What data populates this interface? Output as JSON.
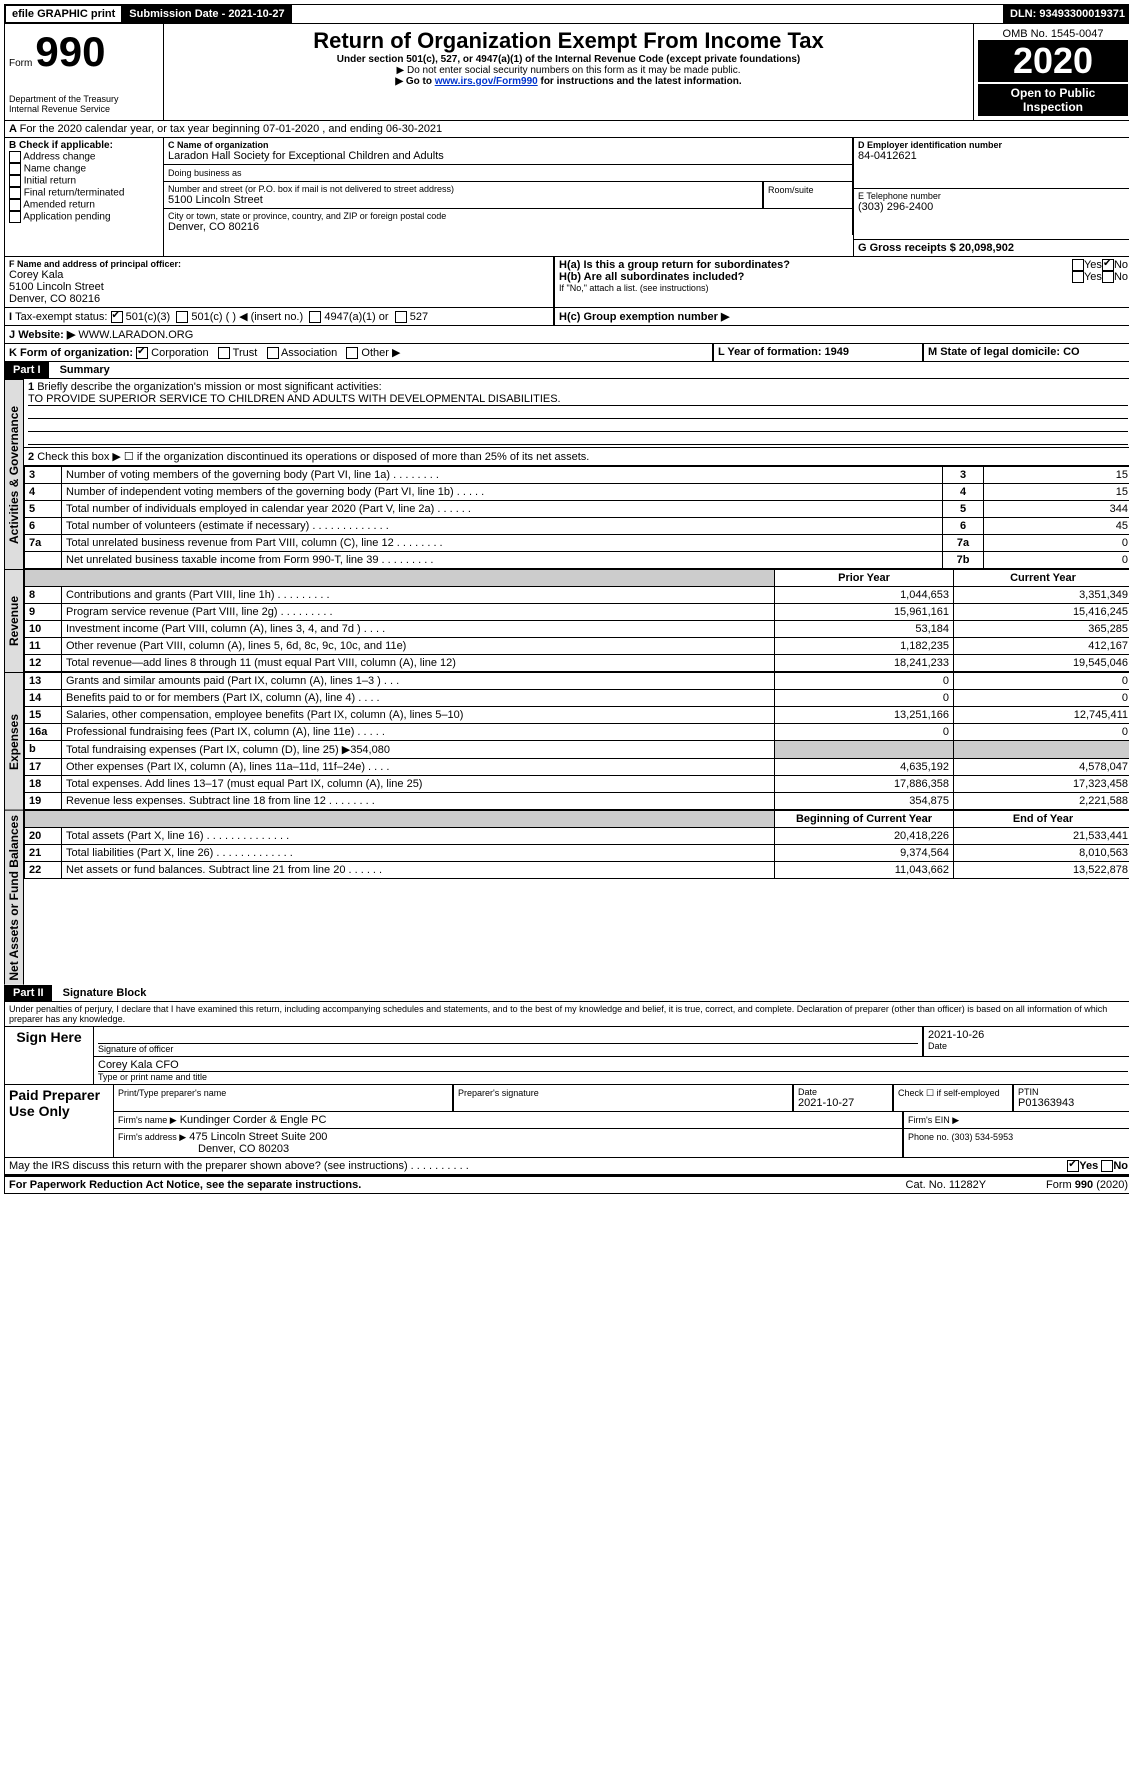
{
  "topbar": {
    "efile": "efile GRAPHIC print",
    "submission_label": "Submission Date - 2021-10-27",
    "dln_label": "DLN: 93493300019371"
  },
  "header": {
    "form_prefix": "Form",
    "form_no": "990",
    "title": "Return of Organization Exempt From Income Tax",
    "sub1": "Under section 501(c), 527, or 4947(a)(1) of the Internal Revenue Code (except private foundations)",
    "sub2": "▶ Do not enter social security numbers on this form as it may be made public.",
    "sub3_pre": "▶ Go to ",
    "sub3_link": "www.irs.gov/Form990",
    "sub3_post": " for instructions and the latest information.",
    "dept": "Department of the Treasury\nInternal Revenue Service",
    "omb": "OMB No. 1545-0047",
    "year": "2020",
    "open": "Open to Public Inspection"
  },
  "A": {
    "line": "For the 2020 calendar year, or tax year beginning 07-01-2020    , and ending 06-30-2021"
  },
  "B": {
    "label": "B Check if applicable:",
    "items": [
      "Address change",
      "Name change",
      "Initial return",
      "Final return/terminated",
      "Amended return",
      "Application pending"
    ]
  },
  "C": {
    "name_label": "C Name of organization",
    "name": "Laradon Hall Society for Exceptional Children and Adults",
    "dba_label": "Doing business as",
    "addr_label": "Number and street (or P.O. box if mail is not delivered to street address)",
    "addr": "5100 Lincoln Street",
    "room_label": "Room/suite",
    "city_label": "City or town, state or province, country, and ZIP or foreign postal code",
    "city": "Denver, CO  80216"
  },
  "D": {
    "label": "D Employer identification number",
    "value": "84-0412621"
  },
  "E": {
    "label": "E Telephone number",
    "value": "(303) 296-2400"
  },
  "G": {
    "label": "G Gross receipts $ 20,098,902"
  },
  "F": {
    "label": "F Name and address of principal officer:",
    "name": "Corey Kala",
    "addr1": "5100 Lincoln Street",
    "addr2": "Denver, CO  80216"
  },
  "H": {
    "a": "H(a)  Is this a group return for subordinates?",
    "b": "H(b)  Are all subordinates included?",
    "b_note": "If \"No,\" attach a list. (see instructions)",
    "c": "H(c)  Group exemption number ▶",
    "yes": "Yes",
    "no": "No"
  },
  "I": {
    "label": "Tax-exempt status:",
    "opt1": "501(c)(3)",
    "opt2": "501(c) (  ) ◀ (insert no.)",
    "opt3": "4947(a)(1) or",
    "opt4": "527"
  },
  "J": {
    "label": "Website: ▶",
    "value": "WWW.LARADON.ORG"
  },
  "K": {
    "label": "K Form of organization:",
    "opts": [
      "Corporation",
      "Trust",
      "Association",
      "Other ▶"
    ]
  },
  "L": {
    "label": "L Year of formation: 1949"
  },
  "M": {
    "label": "M State of legal domicile: CO"
  },
  "part1": {
    "hdr": "Part I",
    "title": "Summary",
    "side_activities": "Activities & Governance",
    "side_revenue": "Revenue",
    "side_expenses": "Expenses",
    "side_netassets": "Net Assets or Fund Balances",
    "l1": "Briefly describe the organization's mission or most significant activities:",
    "l1_text": "TO PROVIDE SUPERIOR SERVICE TO CHILDREN AND ADULTS WITH DEVELOPMENTAL DISABILITIES.",
    "l2": "Check this box ▶ ☐ if the organization discontinued its operations or disposed of more than 25% of its net assets.",
    "lines_gov": [
      {
        "n": "3",
        "t": "Number of voting members of the governing body (Part VI, line 1a)   .   .   .   .   .   .   .   .",
        "box": "3",
        "v": "15"
      },
      {
        "n": "4",
        "t": "Number of independent voting members of the governing body (Part VI, line 1b)   .   .   .   .   .",
        "box": "4",
        "v": "15"
      },
      {
        "n": "5",
        "t": "Total number of individuals employed in calendar year 2020 (Part V, line 2a)   .   .   .   .   .   .",
        "box": "5",
        "v": "344"
      },
      {
        "n": "6",
        "t": "Total number of volunteers (estimate if necessary)   .   .   .   .   .   .   .   .   .   .   .   .   .",
        "box": "6",
        "v": "45"
      },
      {
        "n": "7a",
        "t": "Total unrelated business revenue from Part VIII, column (C), line 12   .   .   .   .   .   .   .   .",
        "box": "7a",
        "v": "0"
      },
      {
        "n": "",
        "t": "Net unrelated business taxable income from Form 990-T, line 39   .   .   .   .   .   .   .   .   .",
        "box": "7b",
        "v": "0"
      }
    ],
    "col_prior": "Prior Year",
    "col_current": "Current Year",
    "lines_rev": [
      {
        "n": "8",
        "t": "Contributions and grants (Part VIII, line 1h)   .   .   .   .   .   .   .   .   .",
        "p": "1,044,653",
        "c": "3,351,349"
      },
      {
        "n": "9",
        "t": "Program service revenue (Part VIII, line 2g)   .   .   .   .   .   .   .   .   .",
        "p": "15,961,161",
        "c": "15,416,245"
      },
      {
        "n": "10",
        "t": "Investment income (Part VIII, column (A), lines 3, 4, and 7d )   .   .   .   .",
        "p": "53,184",
        "c": "365,285"
      },
      {
        "n": "11",
        "t": "Other revenue (Part VIII, column (A), lines 5, 6d, 8c, 9c, 10c, and 11e)",
        "p": "1,182,235",
        "c": "412,167"
      },
      {
        "n": "12",
        "t": "Total revenue—add lines 8 through 11 (must equal Part VIII, column (A), line 12)",
        "p": "18,241,233",
        "c": "19,545,046"
      }
    ],
    "lines_exp": [
      {
        "n": "13",
        "t": "Grants and similar amounts paid (Part IX, column (A), lines 1–3 )   .   .   .",
        "p": "0",
        "c": "0"
      },
      {
        "n": "14",
        "t": "Benefits paid to or for members (Part IX, column (A), line 4)   .   .   .   .",
        "p": "0",
        "c": "0"
      },
      {
        "n": "15",
        "t": "Salaries, other compensation, employee benefits (Part IX, column (A), lines 5–10)",
        "p": "13,251,166",
        "c": "12,745,411"
      },
      {
        "n": "16a",
        "t": "Professional fundraising fees (Part IX, column (A), line 11e)   .   .   .   .   .",
        "p": "0",
        "c": "0"
      },
      {
        "n": "b",
        "t": "Total fundraising expenses (Part IX, column (D), line 25) ▶354,080",
        "p": "shade",
        "c": "shade"
      },
      {
        "n": "17",
        "t": "Other expenses (Part IX, column (A), lines 11a–11d, 11f–24e)   .   .   .   .",
        "p": "4,635,192",
        "c": "4,578,047"
      },
      {
        "n": "18",
        "t": "Total expenses. Add lines 13–17 (must equal Part IX, column (A), line 25)",
        "p": "17,886,358",
        "c": "17,323,458"
      },
      {
        "n": "19",
        "t": "Revenue less expenses. Subtract line 18 from line 12   .   .   .   .   .   .   .   .",
        "p": "354,875",
        "c": "2,221,588"
      }
    ],
    "col_begin": "Beginning of Current Year",
    "col_end": "End of Year",
    "lines_net": [
      {
        "n": "20",
        "t": "Total assets (Part X, line 16)   .   .   .   .   .   .   .   .   .   .   .   .   .   .",
        "p": "20,418,226",
        "c": "21,533,441"
      },
      {
        "n": "21",
        "t": "Total liabilities (Part X, line 26)   .   .   .   .   .   .   .   .   .   .   .   .   .",
        "p": "9,374,564",
        "c": "8,010,563"
      },
      {
        "n": "22",
        "t": "Net assets or fund balances. Subtract line 21 from line 20   .   .   .   .   .   .",
        "p": "11,043,662",
        "c": "13,522,878"
      }
    ]
  },
  "part2": {
    "hdr": "Part II",
    "title": "Signature Block",
    "perjury": "Under penalties of perjury, I declare that I have examined this return, including accompanying schedules and statements, and to the best of my knowledge and belief, it is true, correct, and complete. Declaration of preparer (other than officer) is based on all information of which preparer has any knowledge.",
    "sign_here": "Sign Here",
    "sig_officer": "Signature of officer",
    "sig_date": "2021-10-26",
    "sig_date_label": "Date",
    "name_title": "Corey Kala CFO",
    "name_title_label": "Type or print name and title",
    "paid": "Paid Preparer Use Only",
    "prep_name_label": "Print/Type preparer's name",
    "prep_sig_label": "Preparer's signature",
    "prep_date_label": "Date",
    "prep_date": "2021-10-27",
    "prep_check": "Check ☐ if self-employed",
    "ptin_label": "PTIN",
    "ptin": "P01363943",
    "firm_name_label": "Firm's name   ▶",
    "firm_name": "Kundinger Corder & Engle PC",
    "firm_ein_label": "Firm's EIN ▶",
    "firm_addr_label": "Firm's address ▶",
    "firm_addr": "475 Lincoln Street Suite 200",
    "firm_city": "Denver, CO  80203",
    "phone_label": "Phone no. (303) 534-5953",
    "discuss": "May the IRS discuss this return with the preparer shown above? (see instructions)   .   .   .   .   .   .   .   .   .   .",
    "paperwork": "For Paperwork Reduction Act Notice, see the separate instructions.",
    "cat": "Cat. No. 11282Y",
    "form_foot": "Form 990 (2020)"
  }
}
